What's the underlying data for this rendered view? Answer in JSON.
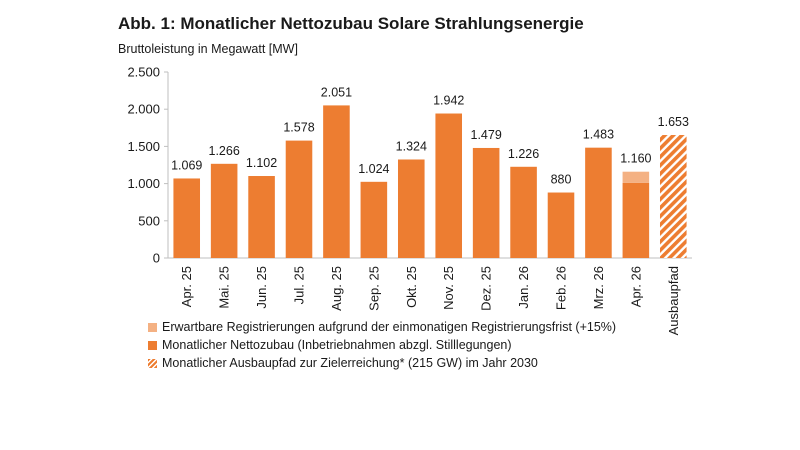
{
  "title": "Abb. 1: Monatlicher Nettozubau Solare Strahlungsenergie",
  "subtitle": "Bruttoleistung in Megawatt [MW]",
  "colors": {
    "main": "#ed7d31",
    "expected": "#f4b183",
    "axis": "#bfbfbf",
    "text": "#1a1a1a"
  },
  "chart_data": {
    "type": "bar",
    "stacked": true,
    "categories": [
      "Apr. 25",
      "Mai. 25",
      "Jun. 25",
      "Jul. 25",
      "Aug. 25",
      "Sep. 25",
      "Okt. 25",
      "Nov. 25",
      "Dez. 25",
      "Jan. 26",
      "Feb. 26",
      "Mrz. 26",
      "Apr. 26",
      "Ausbaupfad"
    ],
    "series": [
      {
        "name": "Monatlicher Nettozubau (Inbetriebnahmen abzgl. Stilllegungen)",
        "values": [
          1069,
          1266,
          1102,
          1578,
          2051,
          1024,
          1324,
          1942,
          1479,
          1226,
          880,
          1483,
          1009,
          null
        ]
      },
      {
        "name": "Erwartbare Registrierungen aufgrund der einmonatigen Registrierungsfrist (+15%)",
        "values": [
          null,
          null,
          null,
          null,
          null,
          null,
          null,
          null,
          null,
          null,
          null,
          null,
          151,
          null
        ]
      },
      {
        "name": "Monatlicher Ausbaupfad zur Zielerreichung* (215 GW) im Jahr 2030",
        "values": [
          null,
          null,
          null,
          null,
          null,
          null,
          null,
          null,
          null,
          null,
          null,
          null,
          null,
          1653
        ]
      }
    ],
    "data_labels": [
      "1.069",
      "1.266",
      "1.102",
      "1.578",
      "2.051",
      "1.024",
      "1.324",
      "1.942",
      "1.479",
      "1.226",
      "880",
      "1.483",
      "1.160",
      "1.653"
    ],
    "y_ticks": [
      0,
      500,
      1000,
      1500,
      2000,
      2500
    ],
    "y_tick_labels": [
      "0",
      "500",
      "1.000",
      "1.500",
      "2.000",
      "2.500"
    ],
    "ylim": [
      0,
      2500
    ],
    "grid": false,
    "legend_position": "bottom"
  }
}
